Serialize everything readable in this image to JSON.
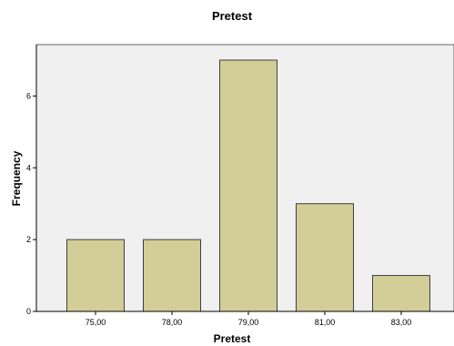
{
  "chart_data": {
    "type": "bar",
    "title": "Pretest",
    "xlabel": "Pretest",
    "ylabel": "Frequency",
    "categories": [
      "75,00",
      "78,00",
      "79,00",
      "81,00",
      "83,00"
    ],
    "values": [
      2,
      2,
      7,
      3,
      1
    ],
    "ylim": [
      0,
      7.5
    ],
    "yticks": [
      0,
      2,
      4,
      6
    ],
    "grid": false,
    "colors": {
      "bar_fill": "#d3ce97",
      "bar_stroke": "#3f3f3f",
      "plot_bg": "#f0f0f0",
      "axis": "#000000"
    }
  }
}
